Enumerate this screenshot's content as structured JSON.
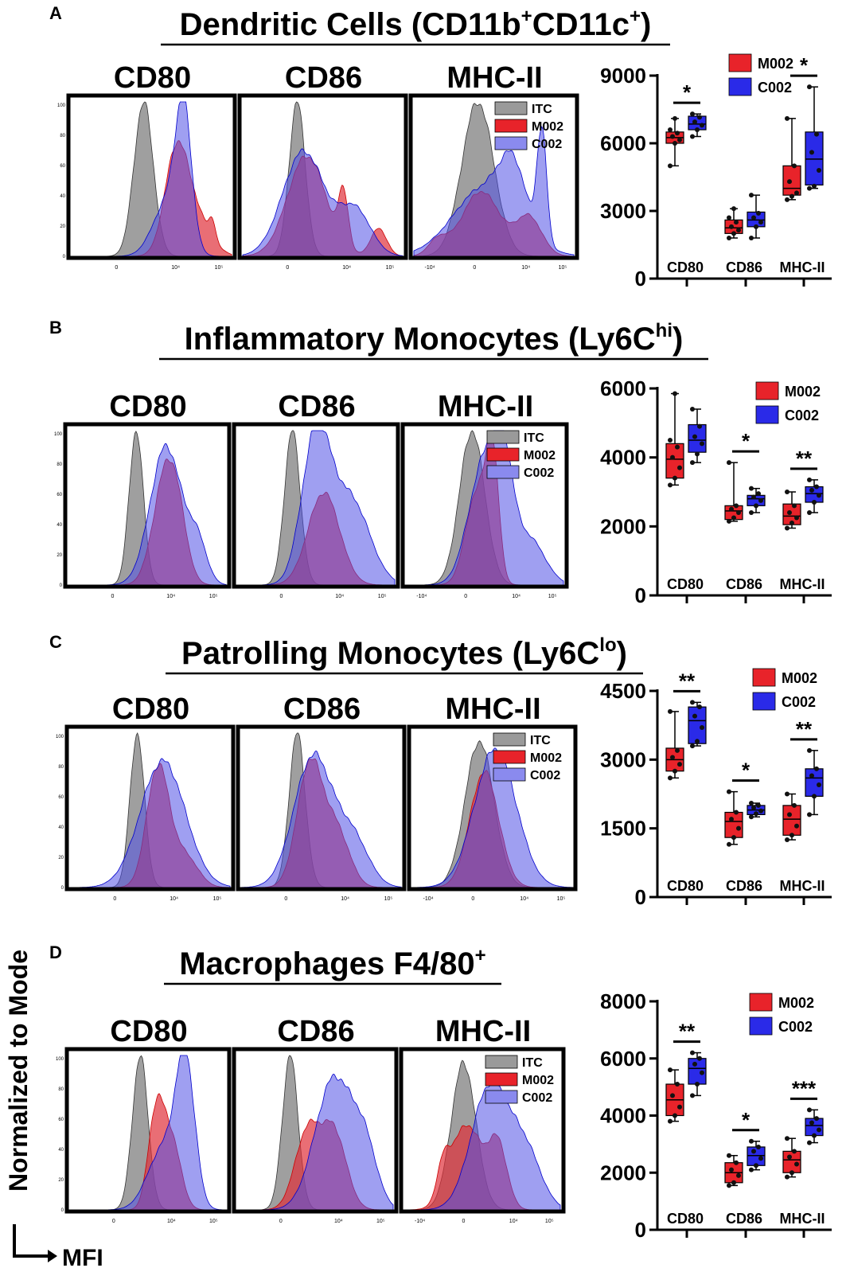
{
  "figure": {
    "y_axis_label": "Normalized to Mode",
    "x_axis_label": "MFI",
    "colors": {
      "itc": "#9a9a9a",
      "m002": "#e8232a",
      "c002": "#2a2ae8",
      "hist_m002": "#e0303a",
      "hist_c002": "#5050e6",
      "overlap": "#7a2a8e"
    },
    "histogram_legend": [
      "ITC",
      "M002",
      "C002"
    ],
    "histogram_ytick_labels": [
      "0",
      "20",
      "40",
      "60",
      "80",
      "100"
    ],
    "boxplot_legend": [
      "M002",
      "C002"
    ]
  },
  "chart_data": [
    {
      "panel": "A",
      "type": "box",
      "title_main": "Dendritic Cells (CD11b",
      "title_sup1": "+",
      "title_mid": "CD11c",
      "title_sup2": "+",
      "title_end": ")",
      "histogram_markers": [
        "CD80",
        "CD86",
        "MHC-II"
      ],
      "histogram_xticks": [
        [
          "0",
          "10⁴",
          "10⁵"
        ],
        [
          "0",
          "10⁴",
          "10⁵"
        ],
        [
          "-10⁴",
          "0",
          "10⁴",
          "10⁵"
        ]
      ],
      "categories": [
        "CD80",
        "CD86",
        "MHC-II"
      ],
      "ylim": [
        0,
        9000
      ],
      "yticks": [
        0,
        3000,
        6000,
        9000
      ],
      "ytick_labels": [
        "0",
        "3000",
        "6000",
        "9000"
      ],
      "series": [
        {
          "name": "M002",
          "boxes": [
            {
              "min": 5000,
              "q1": 6000,
              "median": 6250,
              "q3": 6500,
              "max": 7100,
              "points": [
                5000,
                6000,
                6150,
                6300,
                6450,
                6600,
                7100
              ]
            },
            {
              "min": 1800,
              "q1": 2000,
              "median": 2250,
              "q3": 2600,
              "max": 3100,
              "points": [
                1800,
                2000,
                2150,
                2300,
                2500,
                2700,
                3100
              ]
            },
            {
              "min": 3500,
              "q1": 3700,
              "median": 4000,
              "q3": 5000,
              "max": 7100,
              "points": [
                3500,
                3650,
                3800,
                4300,
                5000,
                7100
              ]
            }
          ]
        },
        {
          "name": "C002",
          "boxes": [
            {
              "min": 6300,
              "q1": 6600,
              "median": 6850,
              "q3": 7200,
              "max": 7300,
              "points": [
                6300,
                6600,
                6800,
                6950,
                7150,
                7300
              ]
            },
            {
              "min": 1800,
              "q1": 2300,
              "median": 2600,
              "q3": 2950,
              "max": 3700,
              "points": [
                1800,
                2300,
                2500,
                2700,
                2900,
                3700
              ]
            },
            {
              "min": 4000,
              "q1": 4150,
              "median": 5300,
              "q3": 6500,
              "max": 8500,
              "points": [
                4000,
                4100,
                4800,
                5600,
                6400,
                8500
              ]
            }
          ]
        }
      ],
      "significance": [
        {
          "category": "CD80",
          "label": "*"
        },
        {
          "category": "MHC-II",
          "label": "*"
        }
      ]
    },
    {
      "panel": "B",
      "type": "box",
      "title_main": "Inflammatory Monocytes (Ly6C",
      "title_sup1": "hi",
      "title_mid": "",
      "title_sup2": "",
      "title_end": ")",
      "histogram_markers": [
        "CD80",
        "CD86",
        "MHC-II"
      ],
      "histogram_xticks": [
        [
          "0",
          "10⁴",
          "10⁵"
        ],
        [
          "0",
          "10⁴",
          "10⁵"
        ],
        [
          "-10⁴",
          "0",
          "10⁴",
          "10⁵"
        ]
      ],
      "categories": [
        "CD80",
        "CD86",
        "MHC-II"
      ],
      "ylim": [
        0,
        6000
      ],
      "yticks": [
        0,
        2000,
        4000,
        6000
      ],
      "ytick_labels": [
        "0",
        "2000",
        "4000",
        "6000"
      ],
      "series": [
        {
          "name": "M002",
          "boxes": [
            {
              "min": 3200,
              "q1": 3400,
              "median": 3950,
              "q3": 4400,
              "max": 5850,
              "points": [
                3200,
                3400,
                3700,
                4000,
                4300,
                4500,
                5850
              ]
            },
            {
              "min": 2150,
              "q1": 2200,
              "median": 2450,
              "q3": 2600,
              "max": 3850,
              "points": [
                2150,
                2250,
                2400,
                2500,
                2600,
                3850
              ]
            },
            {
              "min": 1950,
              "q1": 2050,
              "median": 2300,
              "q3": 2650,
              "max": 3000,
              "points": [
                1950,
                2100,
                2250,
                2400,
                2600,
                3000
              ]
            }
          ]
        },
        {
          "name": "C002",
          "boxes": [
            {
              "min": 3850,
              "q1": 4150,
              "median": 4500,
              "q3": 4950,
              "max": 5400,
              "points": [
                3850,
                4100,
                4400,
                4600,
                4900,
                5400
              ]
            },
            {
              "min": 2400,
              "q1": 2600,
              "median": 2800,
              "q3": 2900,
              "max": 3100,
              "points": [
                2400,
                2600,
                2750,
                2850,
                2950,
                3100
              ]
            },
            {
              "min": 2400,
              "q1": 2700,
              "median": 2950,
              "q3": 3150,
              "max": 3350,
              "points": [
                2400,
                2700,
                2900,
                3050,
                3150,
                3350
              ]
            }
          ]
        }
      ],
      "significance": [
        {
          "category": "CD86",
          "label": "*"
        },
        {
          "category": "MHC-II",
          "label": "**"
        }
      ]
    },
    {
      "panel": "C",
      "type": "box",
      "title_main": "Patrolling Monocytes (Ly6C",
      "title_sup1": "lo",
      "title_mid": "",
      "title_sup2": "",
      "title_end": ")",
      "histogram_markers": [
        "CD80",
        "CD86",
        "MHC-II"
      ],
      "histogram_xticks": [
        [
          "0",
          "10⁴",
          "10⁵"
        ],
        [
          "0",
          "10⁴",
          "10⁵"
        ],
        [
          "-10⁴",
          "0",
          "10⁴",
          "10⁵"
        ]
      ],
      "categories": [
        "CD80",
        "CD86",
        "MHC-II"
      ],
      "ylim": [
        0,
        4500
      ],
      "yticks": [
        0,
        1500,
        3000,
        4500
      ],
      "ytick_labels": [
        "0",
        "1500",
        "3000",
        "4500"
      ],
      "series": [
        {
          "name": "M002",
          "boxes": [
            {
              "min": 2600,
              "q1": 2750,
              "median": 3000,
              "q3": 3250,
              "max": 4050,
              "points": [
                2600,
                2750,
                2900,
                3050,
                3200,
                4050
              ]
            },
            {
              "min": 1150,
              "q1": 1300,
              "median": 1650,
              "q3": 1850,
              "max": 2300,
              "points": [
                1150,
                1300,
                1500,
                1700,
                1850,
                2300
              ]
            },
            {
              "min": 1250,
              "q1": 1350,
              "median": 1700,
              "q3": 2000,
              "max": 2250,
              "points": [
                1250,
                1350,
                1550,
                1800,
                2000,
                2250
              ]
            }
          ]
        },
        {
          "name": "C002",
          "boxes": [
            {
              "min": 3300,
              "q1": 3350,
              "median": 3850,
              "q3": 4150,
              "max": 4250,
              "points": [
                3300,
                3400,
                3700,
                3950,
                4150,
                4250
              ]
            },
            {
              "min": 1750,
              "q1": 1800,
              "median": 1900,
              "q3": 2000,
              "max": 2050,
              "points": [
                1750,
                1820,
                1880,
                1950,
                2000,
                2050
              ]
            },
            {
              "min": 1800,
              "q1": 2200,
              "median": 2600,
              "q3": 2800,
              "max": 3200,
              "points": [
                1800,
                2200,
                2450,
                2650,
                2800,
                3200
              ]
            }
          ]
        }
      ],
      "significance": [
        {
          "category": "CD80",
          "label": "**"
        },
        {
          "category": "CD86",
          "label": "*"
        },
        {
          "category": "MHC-II",
          "label": "**"
        }
      ]
    },
    {
      "panel": "D",
      "type": "box",
      "title_main": "Macrophages F4/80",
      "title_sup1": "+",
      "title_mid": "",
      "title_sup2": "",
      "title_end": "",
      "histogram_markers": [
        "CD80",
        "CD86",
        "MHC-II"
      ],
      "histogram_xticks": [
        [
          "0",
          "10⁴",
          "10⁵"
        ],
        [
          "0",
          "10⁴",
          "10⁵"
        ],
        [
          "-10⁴",
          "0",
          "10⁴",
          "10⁵"
        ]
      ],
      "categories": [
        "CD80",
        "CD86",
        "MHC-II"
      ],
      "ylim": [
        0,
        8000
      ],
      "yticks": [
        0,
        2000,
        4000,
        6000,
        8000
      ],
      "ytick_labels": [
        "0",
        "2000",
        "4000",
        "6000",
        "8000"
      ],
      "series": [
        {
          "name": "M002",
          "boxes": [
            {
              "min": 3800,
              "q1": 4000,
              "median": 4550,
              "q3": 5100,
              "max": 5600,
              "points": [
                3800,
                4000,
                4300,
                4700,
                5100,
                5600
              ]
            },
            {
              "min": 1550,
              "q1": 1650,
              "median": 2000,
              "q3": 2350,
              "max": 2600,
              "points": [
                1550,
                1650,
                1900,
                2100,
                2350,
                2600
              ]
            },
            {
              "min": 1850,
              "q1": 2000,
              "median": 2450,
              "q3": 2750,
              "max": 3200,
              "points": [
                1850,
                2000,
                2300,
                2550,
                2750,
                3200
              ]
            }
          ]
        },
        {
          "name": "C002",
          "boxes": [
            {
              "min": 4700,
              "q1": 5100,
              "median": 5650,
              "q3": 6000,
              "max": 6200,
              "points": [
                4700,
                5100,
                5500,
                5800,
                6000,
                6200
              ]
            },
            {
              "min": 2100,
              "q1": 2250,
              "median": 2600,
              "q3": 2900,
              "max": 3100,
              "points": [
                2100,
                2250,
                2500,
                2750,
                2900,
                3100
              ]
            },
            {
              "min": 3050,
              "q1": 3300,
              "median": 3650,
              "q3": 3900,
              "max": 4200,
              "points": [
                3050,
                3300,
                3500,
                3750,
                3900,
                4200
              ]
            }
          ]
        }
      ],
      "significance": [
        {
          "category": "CD80",
          "label": "**"
        },
        {
          "category": "CD86",
          "label": "*"
        },
        {
          "category": "MHC-II",
          "label": "***"
        }
      ]
    }
  ]
}
